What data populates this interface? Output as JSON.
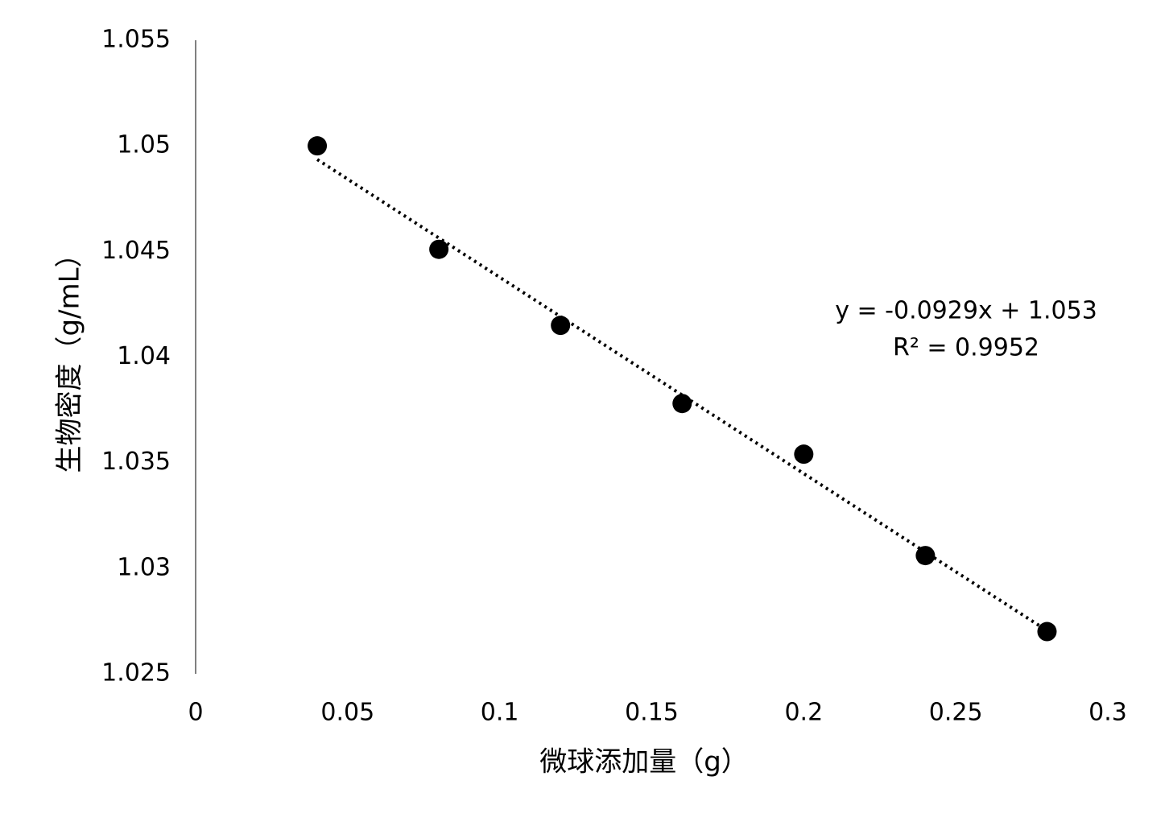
{
  "chart_data": {
    "type": "scatter",
    "x_label": "微球添加量（g）",
    "y_label": "生物密度（g/mL）",
    "x": [
      0.04,
      0.08,
      0.12,
      0.16,
      0.2,
      0.24,
      0.28
    ],
    "series": [
      {
        "color": "#000000",
        "values": [
          1.05,
          1.0451,
          1.0415,
          1.0378,
          1.0354,
          1.0306,
          1.027
        ]
      }
    ],
    "xlim": [
      0,
      0.3
    ],
    "xticks": [
      0,
      0.05,
      0.1,
      0.15,
      0.2,
      0.25,
      0.3
    ],
    "ylim": [
      1.025,
      1.055
    ],
    "yticks": [
      1.025,
      1.03,
      1.035,
      1.04,
      1.045,
      1.05,
      1.055
    ],
    "trendline": "linear",
    "annotations": [
      "y = -0.0929x + 1.053",
      "R² = 0.9952"
    ]
  }
}
